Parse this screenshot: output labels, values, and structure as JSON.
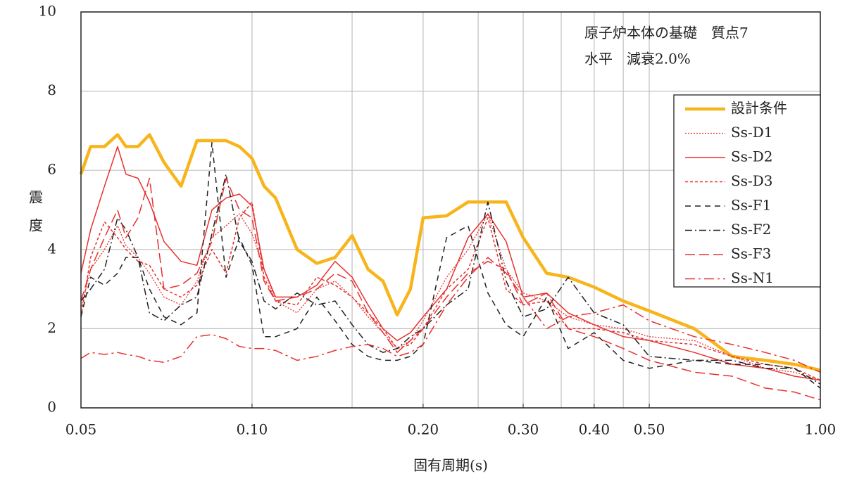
{
  "chart_data": {
    "type": "line",
    "annotation": [
      "原子炉本体の基礎　質点7",
      "水平　減衰2.0%"
    ],
    "x_label": "固有周期(s)",
    "y_label": "震　度",
    "log_x": true,
    "grid": true,
    "legend": "upper right",
    "xlim": [
      0.05,
      1.0
    ],
    "ylim": [
      0,
      10
    ],
    "xticks": [
      {
        "value": 0.05,
        "label": "0.05"
      },
      {
        "value": 0.1,
        "label": "0.10"
      },
      {
        "value": 0.2,
        "label": "0.20"
      },
      {
        "value": 0.3,
        "label": "0.30"
      },
      {
        "value": 0.4,
        "label": "0.40"
      },
      {
        "value": 0.5,
        "label": "0.50"
      },
      {
        "value": 1.0,
        "label": "1.00"
      }
    ],
    "xgrid": [
      0.1,
      0.15,
      0.2,
      0.25,
      0.3,
      0.35,
      0.4,
      0.45,
      0.5
    ],
    "yticks": [
      0,
      2,
      4,
      6,
      8,
      10
    ],
    "x": [
      0.05,
      0.052,
      0.055,
      0.058,
      0.06,
      0.063,
      0.066,
      0.07,
      0.075,
      0.08,
      0.085,
      0.09,
      0.095,
      0.1,
      0.105,
      0.11,
      0.12,
      0.13,
      0.14,
      0.15,
      0.16,
      0.17,
      0.18,
      0.19,
      0.2,
      0.22,
      0.24,
      0.26,
      0.28,
      0.3,
      0.33,
      0.36,
      0.4,
      0.45,
      0.5,
      0.6,
      0.7,
      0.8,
      0.9,
      1.0
    ],
    "series": [
      {
        "name": "設計条件",
        "color": "#f7b51b",
        "width": 4.5,
        "dash": "none",
        "values": [
          5.9,
          6.6,
          6.6,
          6.9,
          6.6,
          6.6,
          6.9,
          6.2,
          5.6,
          6.75,
          6.75,
          6.75,
          6.6,
          6.3,
          5.6,
          5.3,
          4.0,
          3.65,
          3.8,
          4.35,
          3.5,
          3.2,
          2.35,
          3.0,
          4.8,
          4.85,
          5.2,
          5.2,
          5.2,
          4.3,
          3.4,
          3.3,
          3.05,
          2.7,
          2.45,
          2.0,
          1.3,
          1.2,
          1.1,
          0.95
        ]
      },
      {
        "name": "Ss-D1",
        "color": "#e8312f",
        "width": 1.3,
        "dash": "2 2",
        "values": [
          2.5,
          3.5,
          4.0,
          4.6,
          4.1,
          3.8,
          3.4,
          2.8,
          2.6,
          3.2,
          4.3,
          4.6,
          4.9,
          4.4,
          3.5,
          2.7,
          2.4,
          3.0,
          3.2,
          2.8,
          2.3,
          1.9,
          1.5,
          1.7,
          2.2,
          3.3,
          4.0,
          4.9,
          3.5,
          2.9,
          2.7,
          2.3,
          2.1,
          2.0,
          1.8,
          1.7,
          1.3,
          1.0,
          0.9,
          0.7
        ]
      },
      {
        "name": "Ss-D2",
        "color": "#e8312f",
        "width": 1.5,
        "dash": "none",
        "values": [
          3.4,
          4.5,
          5.6,
          6.6,
          5.9,
          5.8,
          5.2,
          4.2,
          3.7,
          3.6,
          5.0,
          5.3,
          5.4,
          5.1,
          3.5,
          2.8,
          2.8,
          3.1,
          3.7,
          3.3,
          2.6,
          2.0,
          1.7,
          1.9,
          2.3,
          3.0,
          4.3,
          4.9,
          4.2,
          2.8,
          2.9,
          2.4,
          2.1,
          1.8,
          1.7,
          1.4,
          1.1,
          1.0,
          0.8,
          0.7
        ]
      },
      {
        "name": "Ss-D3",
        "color": "#e8312f",
        "width": 1.5,
        "dash": "4 3",
        "values": [
          2.3,
          3.8,
          4.7,
          4.3,
          4.0,
          3.7,
          3.6,
          3.0,
          2.8,
          3.1,
          4.0,
          3.4,
          4.8,
          5.2,
          3.3,
          2.7,
          2.6,
          3.3,
          3.1,
          2.8,
          2.4,
          2.0,
          1.5,
          1.6,
          2.0,
          3.0,
          3.5,
          4.8,
          3.0,
          2.6,
          2.7,
          2.0,
          2.0,
          1.9,
          1.7,
          1.6,
          1.3,
          1.1,
          1.0,
          0.7
        ]
      },
      {
        "name": "Ss-F1",
        "color": "#222222",
        "width": 1.5,
        "dash": "8 6",
        "values": [
          2.3,
          3.3,
          3.1,
          3.4,
          3.8,
          3.8,
          3.0,
          2.3,
          2.1,
          2.4,
          6.7,
          3.3,
          4.3,
          3.6,
          1.8,
          1.8,
          2.0,
          2.8,
          2.2,
          1.6,
          1.3,
          1.2,
          1.2,
          1.3,
          1.6,
          4.3,
          4.6,
          2.9,
          2.1,
          1.8,
          2.8,
          1.5,
          1.9,
          1.2,
          1.0,
          1.2,
          1.1,
          1.1,
          1.0,
          0.5
        ]
      },
      {
        "name": "Ss-F2",
        "color": "#222222",
        "width": 1.5,
        "dash": "10 4 2 4",
        "values": [
          2.7,
          3.0,
          3.5,
          4.8,
          4.5,
          3.8,
          2.4,
          2.2,
          2.6,
          2.8,
          4.4,
          5.9,
          4.2,
          3.7,
          2.7,
          2.5,
          2.9,
          2.6,
          2.7,
          2.1,
          1.6,
          1.4,
          1.5,
          1.8,
          2.0,
          2.6,
          3.0,
          5.2,
          3.2,
          2.3,
          2.5,
          3.3,
          2.4,
          2.1,
          1.3,
          1.2,
          1.2,
          1.0,
          1.0,
          0.6
        ]
      },
      {
        "name": "Ss-F3",
        "color": "#e8312f",
        "width": 1.5,
        "dash": "14 6",
        "values": [
          2.7,
          3.5,
          4.3,
          5.0,
          4.3,
          4.8,
          5.8,
          3.0,
          3.1,
          3.4,
          4.2,
          5.8,
          5.0,
          4.8,
          3.2,
          2.7,
          2.8,
          3.0,
          3.4,
          3.2,
          2.4,
          1.9,
          1.4,
          1.7,
          2.0,
          2.8,
          3.4,
          3.7,
          3.5,
          2.6,
          2.9,
          2.0,
          1.8,
          1.5,
          1.2,
          0.9,
          0.8,
          0.5,
          0.4,
          0.2
        ]
      },
      {
        "name": "Ss-N1",
        "color": "#e8312f",
        "width": 1.5,
        "dash": "14 5 3 5",
        "values": [
          1.25,
          1.4,
          1.35,
          1.4,
          1.35,
          1.3,
          1.2,
          1.15,
          1.3,
          1.8,
          1.85,
          1.75,
          1.55,
          1.5,
          1.5,
          1.45,
          1.2,
          1.3,
          1.45,
          1.55,
          1.6,
          1.5,
          1.3,
          1.4,
          1.6,
          2.6,
          3.3,
          3.8,
          3.4,
          2.8,
          2.0,
          2.3,
          2.4,
          2.6,
          2.2,
          1.8,
          1.6,
          1.4,
          1.2,
          0.9
        ]
      }
    ]
  }
}
